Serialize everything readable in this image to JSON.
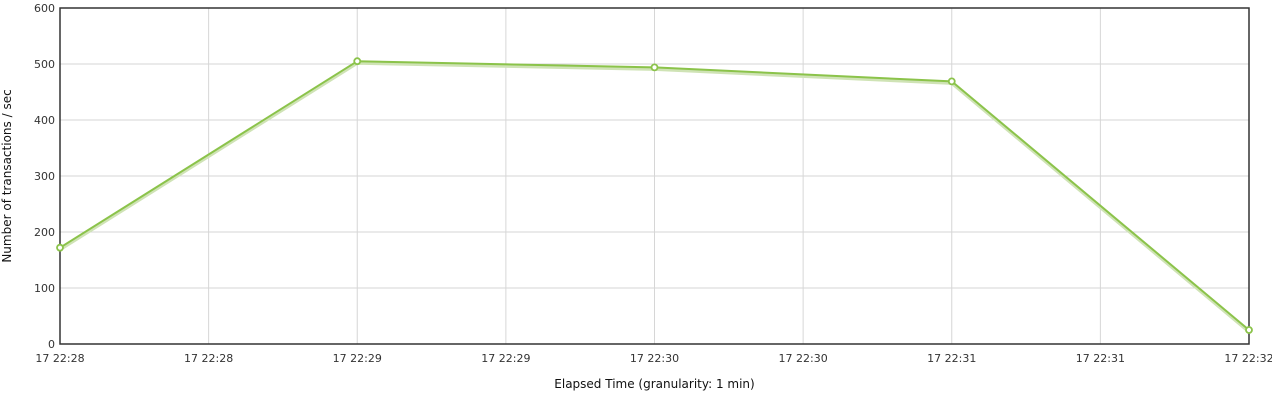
{
  "chart_data": {
    "type": "line",
    "xlabel": "Elapsed Time (granularity: 1 min)",
    "ylabel": "Number of transactions / sec",
    "ylim": [
      0,
      600
    ],
    "yticks": [
      0,
      100,
      200,
      300,
      400,
      500,
      600
    ],
    "x_tick_labels": [
      "17 22:28",
      "17 22:28",
      "17 22:29",
      "17 22:29",
      "17 22:30",
      "17 22:30",
      "17 22:31",
      "17 22:31",
      "17 22:32"
    ],
    "grid": true,
    "legend": "none",
    "series": [
      {
        "color": "#8bc34a",
        "points": [
          {
            "x": "17 22:28",
            "y": 172
          },
          {
            "x": "17 22:29",
            "y": 505
          },
          {
            "x": "17 22:30",
            "y": 494
          },
          {
            "x": "17 22:31",
            "y": 469
          },
          {
            "x": "17 22:32",
            "y": 25
          }
        ]
      }
    ]
  }
}
